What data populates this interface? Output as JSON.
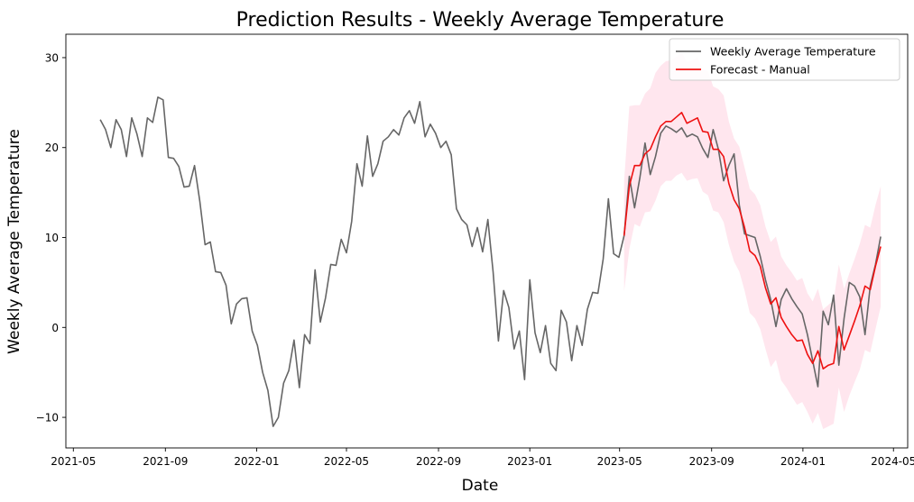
{
  "chart_data": {
    "type": "line",
    "title": "Prediction Results - Weekly Average Temperature",
    "xlabel": "Date",
    "ylabel": "Weekly Average Temperature",
    "xlim": [
      "2021-04-21",
      "2024-05-20"
    ],
    "ylim": [
      -13.4,
      32.6
    ],
    "x_ticks": [
      "2021-05-01",
      "2021-09-01",
      "2022-01-01",
      "2022-05-01",
      "2022-09-01",
      "2023-01-01",
      "2023-05-01",
      "2023-09-01",
      "2024-01-01",
      "2024-05-01"
    ],
    "x_tick_labels": [
      "2021-05",
      "2021-09",
      "2022-01",
      "2022-05",
      "2022-09",
      "2023-01",
      "2023-05",
      "2023-09",
      "2024-01",
      "2024-05"
    ],
    "y_ticks": [
      -10,
      0,
      10,
      20,
      30
    ],
    "y_tick_labels": [
      "−10",
      "0",
      "10",
      "20",
      "30"
    ],
    "grid": false,
    "legend_position": "top-right",
    "series": [
      {
        "name": "Weekly Average Temperature",
        "color": "#666666",
        "x": [
          "2021-06-06",
          "2021-06-13",
          "2021-06-20",
          "2021-06-27",
          "2021-07-04",
          "2021-07-11",
          "2021-07-18",
          "2021-07-25",
          "2021-08-01",
          "2021-08-08",
          "2021-08-15",
          "2021-08-22",
          "2021-08-29",
          "2021-09-05",
          "2021-09-12",
          "2021-09-19",
          "2021-09-26",
          "2021-10-03",
          "2021-10-10",
          "2021-10-17",
          "2021-10-24",
          "2021-10-31",
          "2021-11-07",
          "2021-11-14",
          "2021-11-21",
          "2021-11-28",
          "2021-12-05",
          "2021-12-12",
          "2021-12-19",
          "2021-12-26",
          "2022-01-02",
          "2022-01-09",
          "2022-01-16",
          "2022-01-23",
          "2022-01-30",
          "2022-02-06",
          "2022-02-13",
          "2022-02-20",
          "2022-02-27",
          "2022-03-06",
          "2022-03-13",
          "2022-03-20",
          "2022-03-27",
          "2022-04-03",
          "2022-04-10",
          "2022-04-17",
          "2022-04-24",
          "2022-05-01",
          "2022-05-08",
          "2022-05-15",
          "2022-05-22",
          "2022-05-29",
          "2022-06-05",
          "2022-06-12",
          "2022-06-19",
          "2022-06-26",
          "2022-07-03",
          "2022-07-10",
          "2022-07-17",
          "2022-07-24",
          "2022-07-31",
          "2022-08-07",
          "2022-08-14",
          "2022-08-21",
          "2022-08-28",
          "2022-09-04",
          "2022-09-11",
          "2022-09-18",
          "2022-09-25",
          "2022-10-02",
          "2022-10-09",
          "2022-10-16",
          "2022-10-23",
          "2022-10-30",
          "2022-11-06",
          "2022-11-13",
          "2022-11-20",
          "2022-11-27",
          "2022-12-04",
          "2022-12-11",
          "2022-12-18",
          "2022-12-25",
          "2023-01-01",
          "2023-01-08",
          "2023-01-15",
          "2023-01-22",
          "2023-01-29",
          "2023-02-05",
          "2023-02-12",
          "2023-02-19",
          "2023-02-26",
          "2023-03-05",
          "2023-03-12",
          "2023-03-19",
          "2023-03-26",
          "2023-04-02",
          "2023-04-09",
          "2023-04-16",
          "2023-04-23",
          "2023-04-30",
          "2023-05-07",
          "2023-05-14",
          "2023-05-21",
          "2023-05-28",
          "2023-06-04",
          "2023-06-11",
          "2023-06-18",
          "2023-06-25",
          "2023-07-02",
          "2023-07-09",
          "2023-07-16",
          "2023-07-23",
          "2023-07-30",
          "2023-08-06",
          "2023-08-13",
          "2023-08-20",
          "2023-08-27",
          "2023-09-03",
          "2023-09-10",
          "2023-09-17",
          "2023-09-24",
          "2023-10-01",
          "2023-10-08",
          "2023-10-15",
          "2023-10-22",
          "2023-10-29",
          "2023-11-05",
          "2023-11-12",
          "2023-11-19",
          "2023-11-26",
          "2023-12-03",
          "2023-12-10",
          "2023-12-17",
          "2023-12-24",
          "2023-12-31",
          "2024-01-07",
          "2024-01-14",
          "2024-01-21",
          "2024-01-28",
          "2024-02-04",
          "2024-02-11",
          "2024-02-18",
          "2024-02-25",
          "2024-03-03",
          "2024-03-10",
          "2024-03-17",
          "2024-03-24",
          "2024-03-31",
          "2024-04-07",
          "2024-04-14"
        ],
        "values": [
          23.1,
          22.0,
          20.0,
          23.1,
          22.0,
          19.0,
          23.3,
          21.5,
          19.0,
          23.3,
          22.8,
          25.6,
          25.3,
          18.9,
          18.8,
          17.9,
          15.6,
          15.7,
          18.0,
          14.0,
          9.2,
          9.5,
          6.2,
          6.1,
          4.7,
          0.4,
          2.6,
          3.2,
          3.3,
          -0.4,
          -2.0,
          -5.0,
          -7.0,
          -11.0,
          -10.0,
          -6.2,
          -4.8,
          -1.4,
          -6.7,
          -0.8,
          -1.8,
          6.4,
          0.6,
          3.3,
          7.0,
          6.9,
          9.8,
          8.3,
          11.8,
          18.2,
          15.7,
          21.3,
          16.8,
          18.2,
          20.7,
          21.2,
          22.0,
          21.4,
          23.3,
          24.1,
          22.7,
          25.1,
          21.2,
          22.6,
          21.6,
          20.0,
          20.7,
          19.2,
          13.2,
          12.0,
          11.4,
          9.0,
          11.1,
          8.4,
          12.0,
          6.2,
          -1.5,
          4.1,
          2.2,
          -2.4,
          -0.4,
          -5.8,
          5.3,
          -0.6,
          -2.8,
          0.2,
          -4.0,
          -4.8,
          1.9,
          0.6,
          -3.7,
          0.2,
          -2.0,
          2.0,
          3.9,
          3.8,
          7.6,
          14.3,
          8.2,
          7.8,
          10.2,
          16.8,
          13.3,
          16.6,
          20.5,
          17.0,
          19.0,
          21.6,
          22.4,
          22.1,
          21.7,
          22.2,
          21.2,
          21.5,
          21.2,
          19.9,
          18.9,
          22.0,
          19.8,
          16.3,
          18.0,
          19.3,
          13.6,
          10.4,
          10.2,
          10.0,
          7.9,
          5.3,
          3.1,
          0.1,
          3.1,
          4.3,
          3.2,
          2.3,
          1.5,
          -0.8,
          -3.7,
          -6.6,
          1.8,
          0.3,
          3.6,
          -4.2,
          1.0,
          5.0,
          4.6,
          3.4,
          -0.8,
          4.6,
          7.0,
          10.1
        ]
      },
      {
        "name": "Forecast - Manual",
        "color": "#ee1111",
        "band_color": "#ffd6e3",
        "x": [
          "2023-05-07",
          "2023-05-14",
          "2023-05-21",
          "2023-05-28",
          "2023-06-04",
          "2023-06-11",
          "2023-06-18",
          "2023-06-25",
          "2023-07-02",
          "2023-07-09",
          "2023-07-16",
          "2023-07-23",
          "2023-07-30",
          "2023-08-06",
          "2023-08-13",
          "2023-08-20",
          "2023-08-27",
          "2023-09-03",
          "2023-09-10",
          "2023-09-17",
          "2023-09-24",
          "2023-10-01",
          "2023-10-08",
          "2023-10-15",
          "2023-10-22",
          "2023-10-29",
          "2023-11-05",
          "2023-11-12",
          "2023-11-19",
          "2023-11-26",
          "2023-12-03",
          "2023-12-10",
          "2023-12-17",
          "2023-12-24",
          "2023-12-31",
          "2024-01-07",
          "2024-01-14",
          "2024-01-21",
          "2024-01-28",
          "2024-02-04",
          "2024-02-11",
          "2024-02-18",
          "2024-02-25",
          "2024-03-03",
          "2024-03-10",
          "2024-03-17",
          "2024-03-24",
          "2024-03-31",
          "2024-04-07",
          "2024-04-14"
        ],
        "values": [
          10.2,
          15.7,
          18.0,
          18.0,
          19.3,
          19.8,
          21.2,
          22.4,
          22.9,
          22.9,
          23.4,
          23.9,
          22.7,
          23.0,
          23.3,
          21.8,
          21.7,
          19.8,
          19.8,
          19.0,
          16.0,
          14.2,
          13.2,
          11.1,
          8.5,
          8.0,
          6.8,
          4.4,
          2.6,
          3.3,
          1.1,
          0.1,
          -0.8,
          -1.5,
          -1.4,
          -3.0,
          -4.0,
          -2.6,
          -4.6,
          -4.2,
          -4.0,
          0.1,
          -2.5,
          -0.9,
          0.7,
          2.4,
          4.6,
          4.2,
          6.8,
          9.0
        ],
        "lower": [
          4.0,
          8.7,
          11.5,
          11.2,
          12.8,
          12.9,
          14.1,
          15.7,
          16.3,
          16.3,
          16.9,
          17.2,
          16.3,
          16.5,
          16.6,
          15.1,
          14.7,
          13.0,
          12.8,
          11.7,
          9.2,
          7.3,
          6.2,
          4.1,
          1.6,
          1.0,
          -0.2,
          -2.4,
          -4.4,
          -3.6,
          -5.9,
          -6.7,
          -7.7,
          -8.6,
          -8.3,
          -9.4,
          -10.7,
          -9.5,
          -11.3,
          -11.0,
          -10.7,
          -6.7,
          -9.4,
          -7.6,
          -6.1,
          -4.7,
          -2.5,
          -2.8,
          -0.2,
          2.3
        ],
        "upper": [
          16.3,
          24.6,
          24.7,
          24.7,
          26.0,
          26.6,
          28.3,
          29.1,
          29.6,
          29.7,
          30.1,
          30.6,
          29.5,
          29.7,
          30.0,
          28.7,
          28.5,
          26.8,
          26.5,
          25.8,
          22.9,
          21.0,
          20.1,
          17.8,
          15.4,
          14.8,
          13.6,
          11.2,
          9.5,
          10.1,
          7.9,
          6.9,
          6.1,
          5.2,
          5.5,
          3.8,
          2.9,
          4.3,
          2.0,
          2.5,
          3.0,
          7.0,
          4.3,
          6.0,
          7.6,
          9.3,
          11.4,
          11.1,
          13.6,
          15.7
        ]
      }
    ]
  }
}
